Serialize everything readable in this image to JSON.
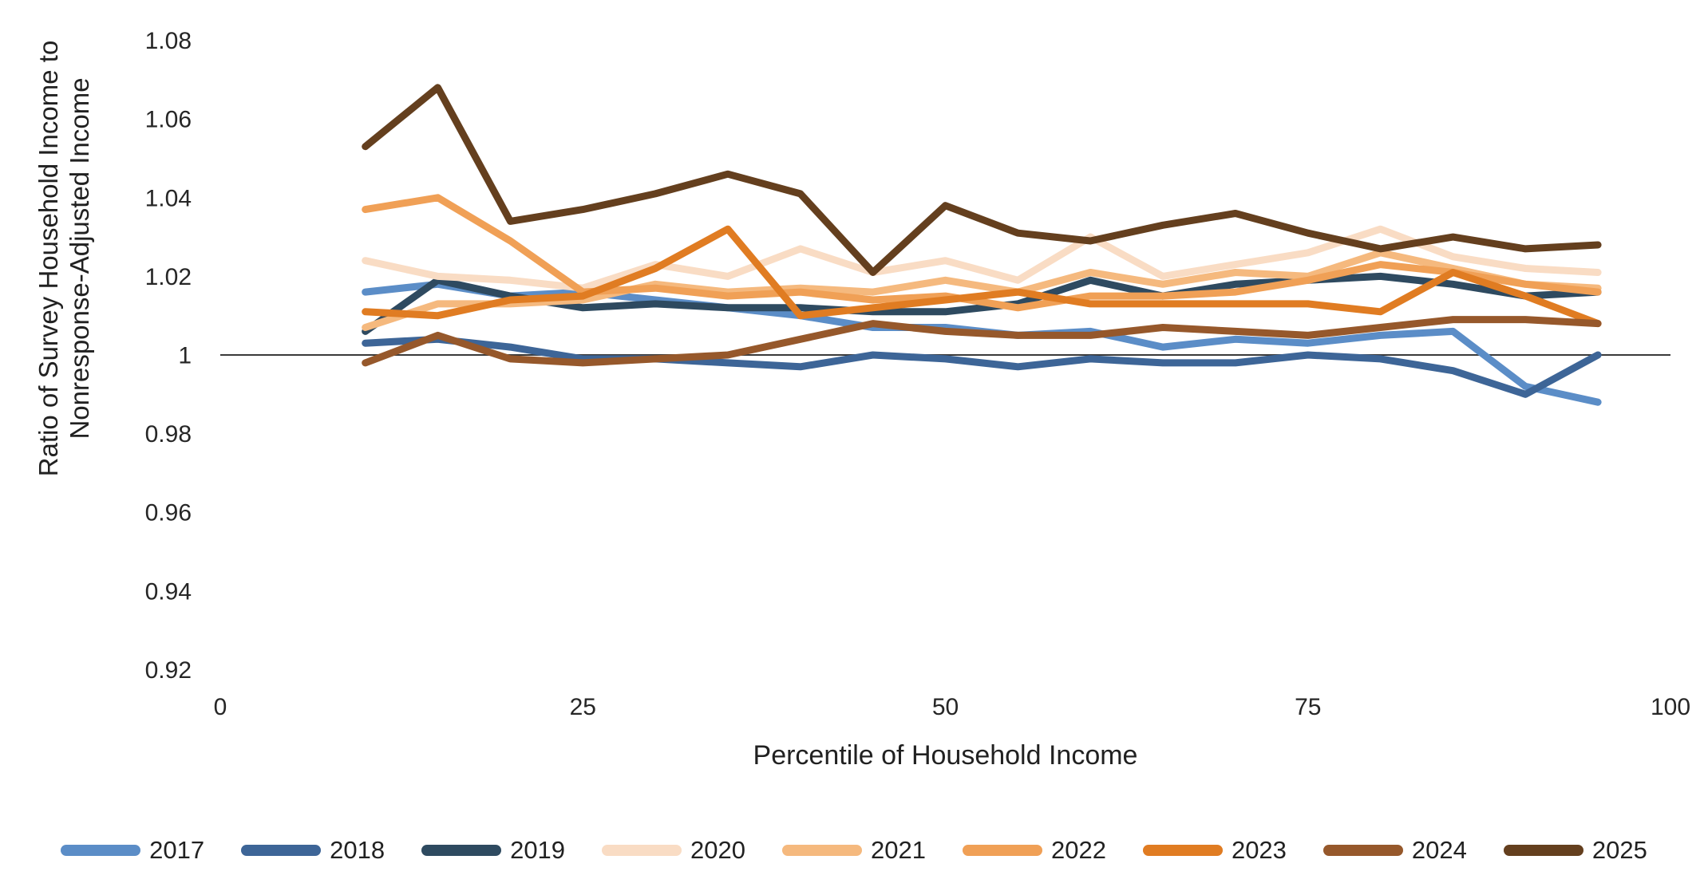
{
  "chart_data": {
    "type": "line",
    "title": "",
    "xlabel": "Percentile of Household Income",
    "ylabel_line1": "Ratio of Survey Household Income to",
    "ylabel_line2": "Nonresponse-Adjusted Income",
    "xlim": [
      0,
      100
    ],
    "ylim": [
      0.92,
      1.08
    ],
    "x_ticks": [
      "0",
      "25",
      "50",
      "75",
      "100"
    ],
    "x_tick_values": [
      0,
      25,
      50,
      75,
      100
    ],
    "y_ticks": [
      "0.92",
      "0.94",
      "0.96",
      "0.98",
      "1",
      "1.02",
      "1.04",
      "1.06",
      "1.08"
    ],
    "y_tick_values": [
      0.92,
      0.94,
      0.96,
      0.98,
      1.0,
      1.02,
      1.04,
      1.06,
      1.08
    ],
    "grid": "off",
    "reference_line_y": 1.0,
    "reference_line_color": "#3a3a3a",
    "legend_position": "bottom",
    "x": [
      10,
      15,
      20,
      25,
      30,
      35,
      40,
      45,
      50,
      55,
      60,
      65,
      70,
      75,
      80,
      85,
      90,
      95
    ],
    "series": [
      {
        "name": "2017",
        "color": "#5B8DC7",
        "values": [
          1.016,
          1.018,
          1.015,
          1.016,
          1.014,
          1.012,
          1.01,
          1.007,
          1.007,
          1.005,
          1.006,
          1.002,
          1.004,
          1.003,
          1.005,
          1.006,
          0.992,
          0.988
        ]
      },
      {
        "name": "2018",
        "color": "#3D6597",
        "values": [
          1.003,
          1.004,
          1.002,
          0.999,
          0.999,
          0.998,
          0.997,
          1.0,
          0.999,
          0.997,
          0.999,
          0.998,
          0.998,
          1.0,
          0.999,
          0.996,
          0.99,
          1.0
        ]
      },
      {
        "name": "2019",
        "color": "#2E4A60",
        "values": [
          1.006,
          1.019,
          1.015,
          1.012,
          1.013,
          1.012,
          1.012,
          1.011,
          1.011,
          1.013,
          1.019,
          1.015,
          1.018,
          1.019,
          1.02,
          1.018,
          1.015,
          1.016
        ]
      },
      {
        "name": "2020",
        "color": "#F9DCC4",
        "values": [
          1.024,
          1.02,
          1.019,
          1.017,
          1.023,
          1.02,
          1.027,
          1.021,
          1.024,
          1.019,
          1.03,
          1.02,
          1.023,
          1.026,
          1.032,
          1.025,
          1.022,
          1.021
        ]
      },
      {
        "name": "2021",
        "color": "#F5B97E",
        "values": [
          1.007,
          1.013,
          1.013,
          1.014,
          1.018,
          1.016,
          1.017,
          1.016,
          1.019,
          1.016,
          1.021,
          1.018,
          1.021,
          1.02,
          1.026,
          1.022,
          1.018,
          1.017
        ]
      },
      {
        "name": "2022",
        "color": "#F0A056",
        "values": [
          1.037,
          1.04,
          1.029,
          1.016,
          1.017,
          1.015,
          1.016,
          1.014,
          1.015,
          1.012,
          1.015,
          1.015,
          1.016,
          1.019,
          1.023,
          1.021,
          1.018,
          1.016
        ]
      },
      {
        "name": "2023",
        "color": "#E07C22",
        "values": [
          1.011,
          1.01,
          1.014,
          1.015,
          1.022,
          1.032,
          1.01,
          1.012,
          1.014,
          1.016,
          1.013,
          1.013,
          1.013,
          1.013,
          1.011,
          1.021,
          1.015,
          1.008
        ]
      },
      {
        "name": "2024",
        "color": "#96582B",
        "values": [
          0.998,
          1.005,
          0.999,
          0.998,
          0.999,
          1.0,
          1.004,
          1.008,
          1.006,
          1.005,
          1.005,
          1.007,
          1.006,
          1.005,
          1.007,
          1.009,
          1.009,
          1.008
        ]
      },
      {
        "name": "2025",
        "color": "#643F1E",
        "values": [
          1.053,
          1.068,
          1.034,
          1.037,
          1.041,
          1.046,
          1.041,
          1.021,
          1.038,
          1.031,
          1.029,
          1.033,
          1.036,
          1.031,
          1.027,
          1.03,
          1.027,
          1.028
        ]
      }
    ]
  }
}
